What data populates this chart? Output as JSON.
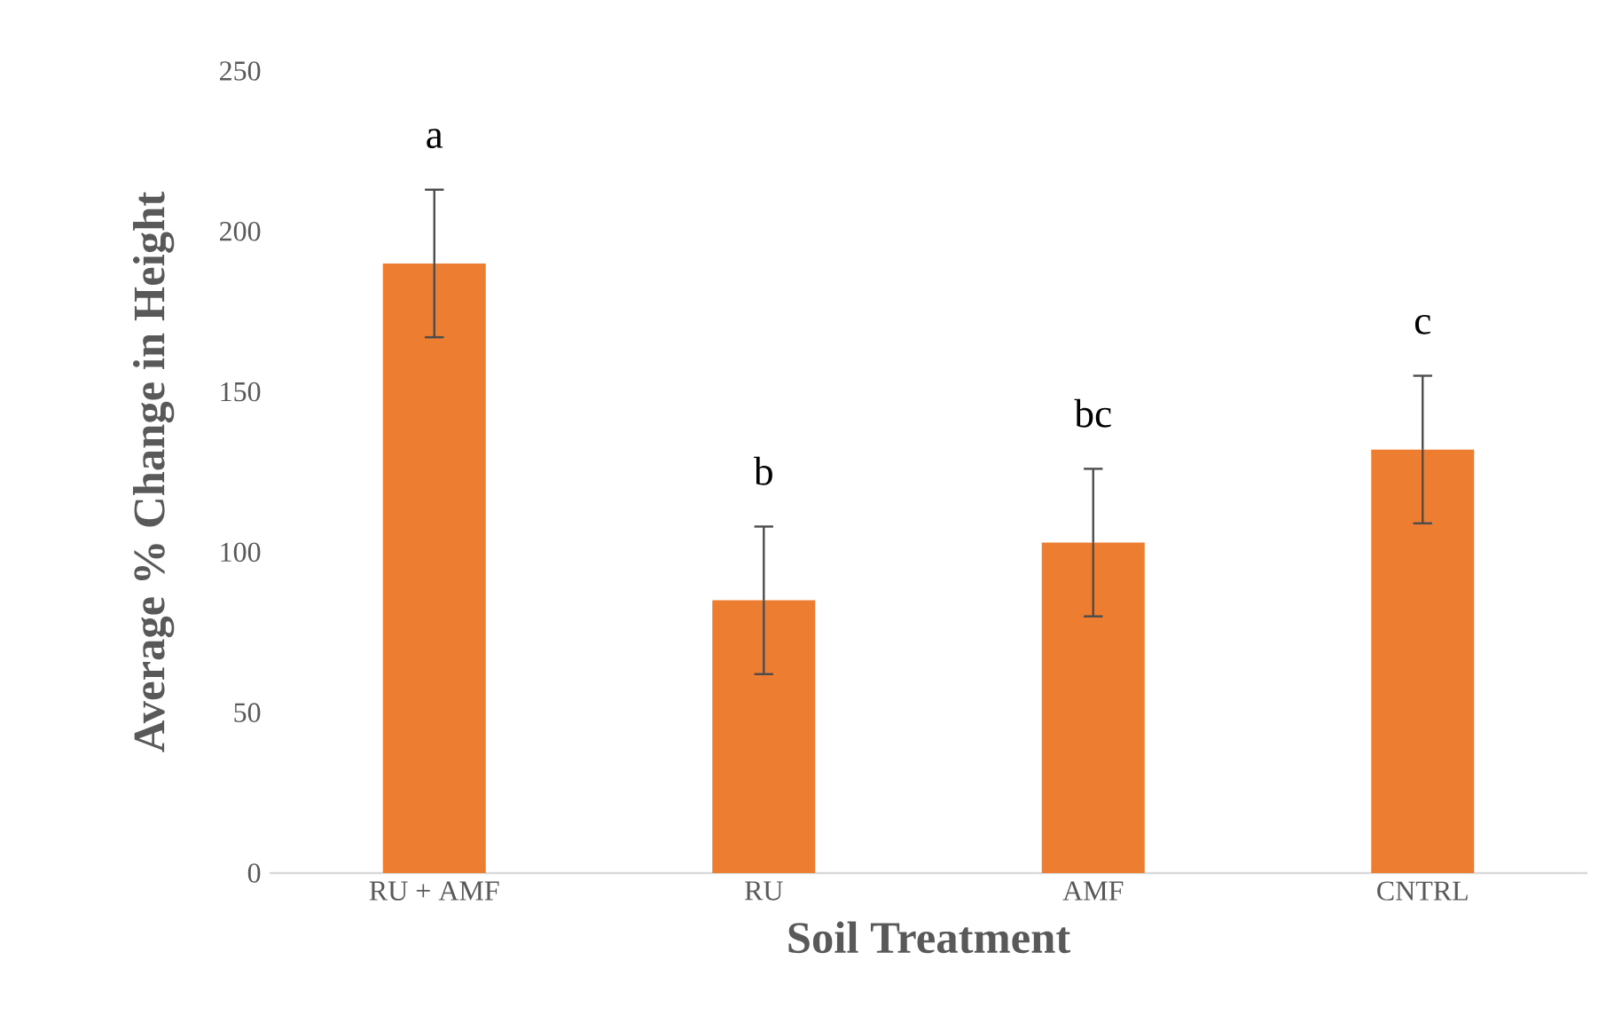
{
  "chart_data": {
    "type": "bar",
    "xlabel": "Soil Treatment",
    "ylabel": "Average % Change in Height",
    "categories": [
      "RU + AMF",
      "RU",
      "AMF",
      "CNTRL"
    ],
    "values": [
      190,
      85,
      103,
      132
    ],
    "errors": [
      23,
      23,
      23,
      23
    ],
    "color": "#ed7d31",
    "ylim": [
      0,
      250
    ],
    "yticks": [
      0,
      50,
      100,
      150,
      200,
      250
    ],
    "grid": false,
    "annotations": [
      "a",
      "b",
      "bc",
      "c"
    ]
  }
}
